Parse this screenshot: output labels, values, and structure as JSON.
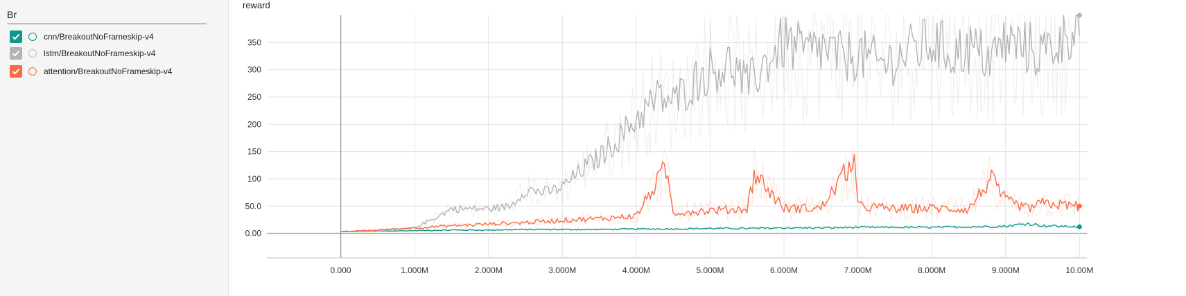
{
  "sidebar": {
    "filter_value": "Br",
    "runs": [
      {
        "label": "cnn/BreakoutNoFrameskip-v4",
        "color": "#12978a",
        "checked": true
      },
      {
        "label": "lstm/BreakoutNoFrameskip-v4",
        "color": "#b3b3b3",
        "checked": true
      },
      {
        "label": "attention/BreakoutNoFrameskip-v4",
        "color": "#f86b44",
        "checked": true
      }
    ]
  },
  "chart_data": {
    "type": "line",
    "title": "reward",
    "xlim": [
      -1000000,
      10100000
    ],
    "ylim": [
      -45,
      400
    ],
    "x_ticks": [
      0,
      1000000,
      2000000,
      3000000,
      4000000,
      5000000,
      6000000,
      7000000,
      8000000,
      9000000,
      10000000
    ],
    "x_tick_labels": [
      "0.000",
      "1.000M",
      "2.000M",
      "3.000M",
      "4.000M",
      "5.000M",
      "6.000M",
      "7.000M",
      "8.000M",
      "9.000M",
      "10.00M"
    ],
    "y_ticks": [
      0,
      50,
      100,
      150,
      200,
      250,
      300,
      350
    ],
    "y_tick_labels": [
      "0.00",
      "50.0",
      "100",
      "150",
      "200",
      "250",
      "300",
      "350"
    ],
    "grid": true,
    "series": [
      {
        "name": "cnn/BreakoutNoFrameskip-v4",
        "color": "#12978a",
        "x": [
          0,
          500000,
          1000000,
          1500000,
          2000000,
          2500000,
          3000000,
          3500000,
          4000000,
          4500000,
          5000000,
          5500000,
          6000000,
          6500000,
          7000000,
          7500000,
          8000000,
          8500000,
          9000000,
          9300000,
          9500000,
          10000000
        ],
        "y": [
          3,
          4,
          5,
          6,
          6,
          7,
          7,
          7,
          8,
          8,
          9,
          9,
          10,
          10,
          11,
          11,
          11,
          12,
          13,
          18,
          14,
          12
        ]
      },
      {
        "name": "lstm/BreakoutNoFrameskip-v4",
        "color": "#b3b3b3",
        "x": [
          0,
          500000,
          1000000,
          1300000,
          1500000,
          2000000,
          2300000,
          2500000,
          2800000,
          3000000,
          3300000,
          3500000,
          3800000,
          4000000,
          4300000,
          4500000,
          4800000,
          5000000,
          5300000,
          5500000,
          5800000,
          6000000,
          6300000,
          6500000,
          6800000,
          7000000,
          7300000,
          7500000,
          7800000,
          8000000,
          8300000,
          8500000,
          8800000,
          9000000,
          9300000,
          9500000,
          9800000,
          10000000
        ],
        "y": [
          3,
          5,
          10,
          30,
          45,
          45,
          50,
          80,
          75,
          85,
          120,
          140,
          180,
          210,
          250,
          240,
          280,
          300,
          310,
          270,
          320,
          350,
          330,
          340,
          320,
          330,
          310,
          320,
          340,
          350,
          330,
          340,
          320,
          350,
          340,
          330,
          360,
          400
        ]
      },
      {
        "name": "attention/BreakoutNoFrameskip-v4",
        "color": "#f86b44",
        "x": [
          0,
          500000,
          1000000,
          1500000,
          2000000,
          2500000,
          3000000,
          3500000,
          4000000,
          4400000,
          4500000,
          5000000,
          5500000,
          5600000,
          6000000,
          6500000,
          6950000,
          7000000,
          7500000,
          8000000,
          8500000,
          8800000,
          9000000,
          9300000,
          9500000,
          10000000
        ],
        "y": [
          3,
          6,
          10,
          14,
          17,
          20,
          24,
          27,
          32,
          120,
          38,
          42,
          45,
          110,
          46,
          46,
          135,
          50,
          45,
          46,
          44,
          100,
          60,
          45,
          55,
          50
        ]
      }
    ]
  }
}
